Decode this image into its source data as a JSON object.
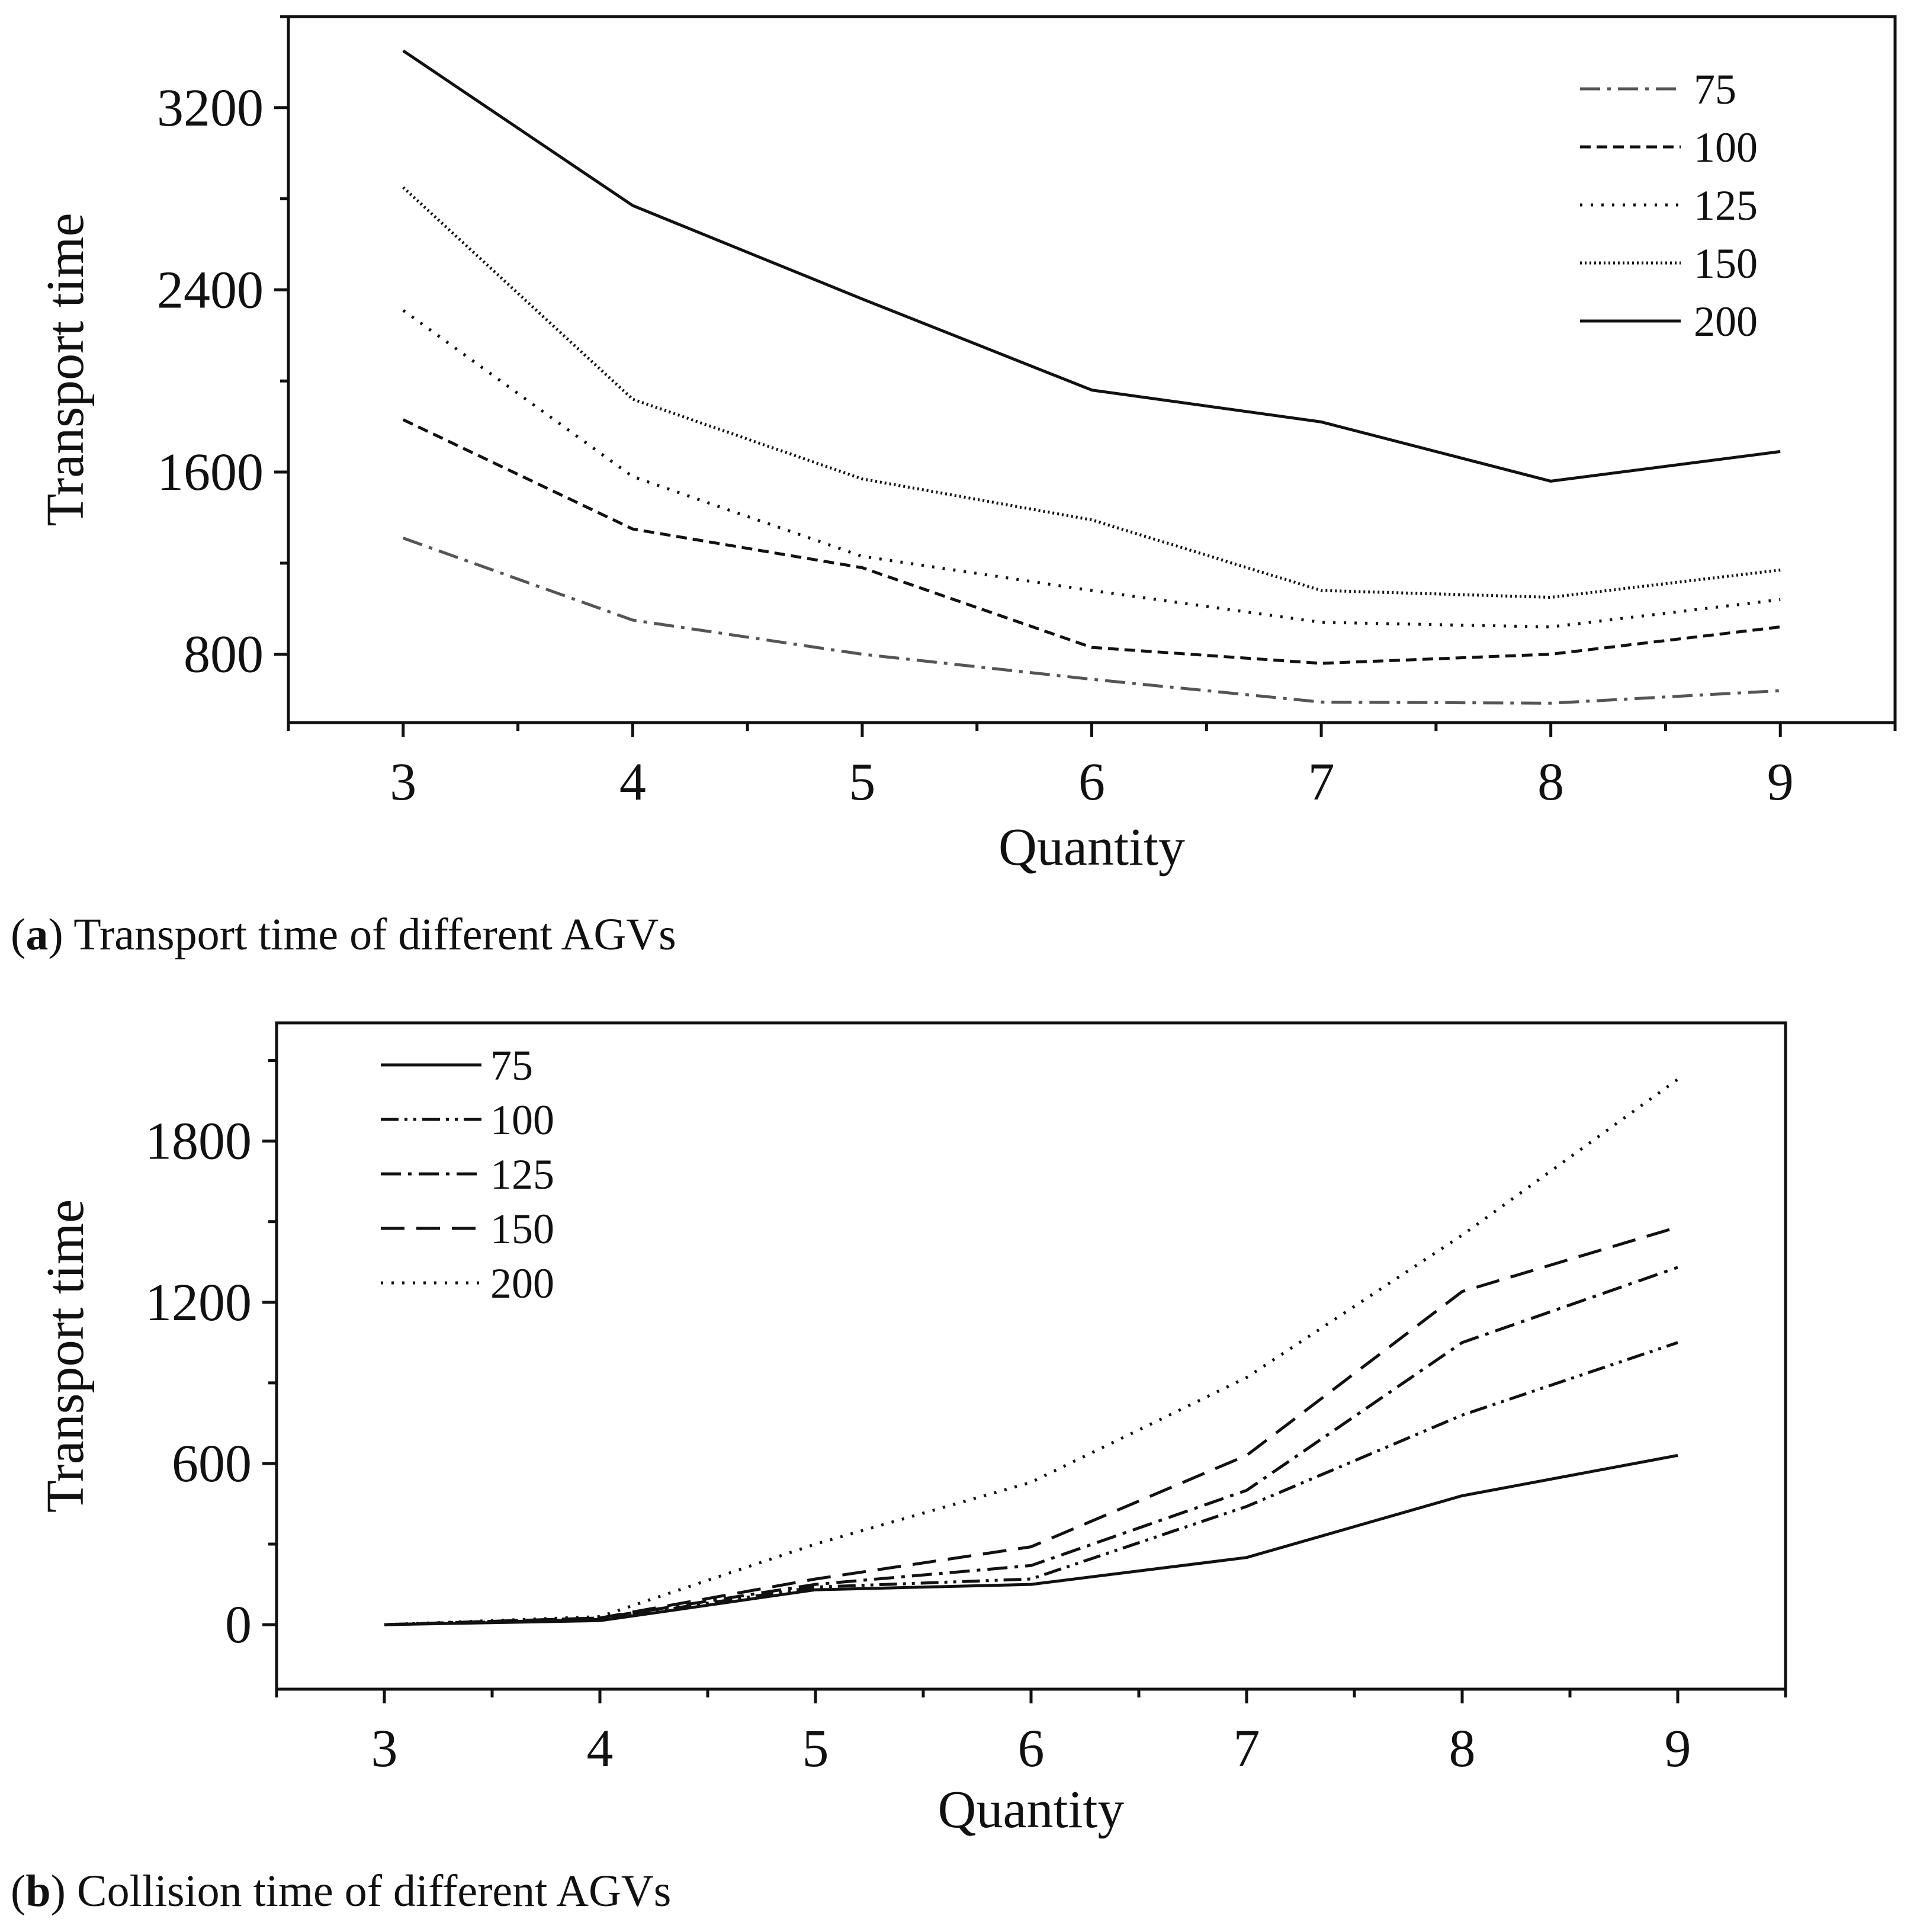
{
  "chart_data": [
    {
      "type": "line",
      "panel": "a",
      "xlabel": "Quantity",
      "ylabel": "Transport time",
      "x": [
        3,
        4,
        5,
        6,
        7,
        8,
        9
      ],
      "xlim": [
        2.5,
        9.5
      ],
      "ylim": [
        500,
        3600
      ],
      "yticks": [
        800,
        1600,
        2400,
        3200
      ],
      "legend_position": "top-right",
      "series": [
        {
          "name": "75",
          "style": "dashdot",
          "color": "#555555",
          "values": [
            1310,
            950,
            800,
            690,
            590,
            585,
            640
          ]
        },
        {
          "name": "100",
          "style": "dashed",
          "color": "#111111",
          "values": [
            1830,
            1350,
            1180,
            830,
            760,
            800,
            920
          ]
        },
        {
          "name": "125",
          "style": "dotted",
          "color": "#111111",
          "values": [
            2310,
            1580,
            1230,
            1080,
            940,
            920,
            1040
          ]
        },
        {
          "name": "150",
          "style": "densedot",
          "color": "#111111",
          "values": [
            2850,
            1920,
            1570,
            1390,
            1080,
            1050,
            1170
          ]
        },
        {
          "name": "200",
          "style": "solid",
          "color": "#111111",
          "values": [
            3450,
            2770,
            2360,
            1960,
            1820,
            1560,
            1690
          ]
        }
      ],
      "caption": {
        "label": "a",
        "text": "Transport time of different AGVs"
      }
    },
    {
      "type": "line",
      "panel": "b",
      "xlabel": "Quantity",
      "ylabel": "Transport time",
      "x": [
        3,
        4,
        5,
        6,
        7,
        8,
        9
      ],
      "xlim": [
        2.5,
        9.5
      ],
      "ylim": [
        -240,
        2240
      ],
      "yticks": [
        0,
        600,
        1200,
        1800
      ],
      "legend_position": "top-left",
      "series": [
        {
          "name": "75",
          "style": "solid",
          "color": "#111111",
          "values": [
            0,
            15,
            130,
            150,
            250,
            480,
            630
          ]
        },
        {
          "name": "100",
          "style": "dashdotdot",
          "color": "#111111",
          "values": [
            0,
            20,
            140,
            170,
            440,
            780,
            1050
          ]
        },
        {
          "name": "125",
          "style": "dashdot",
          "color": "#111111",
          "values": [
            0,
            25,
            150,
            220,
            500,
            1050,
            1330
          ]
        },
        {
          "name": "150",
          "style": "longdash",
          "color": "#111111",
          "values": [
            0,
            25,
            170,
            290,
            630,
            1240,
            1480
          ]
        },
        {
          "name": "200",
          "style": "dotted",
          "color": "#111111",
          "values": [
            0,
            30,
            300,
            530,
            920,
            1450,
            2030
          ]
        }
      ],
      "caption": {
        "label": "b",
        "text": "Collision time of different AGVs"
      }
    }
  ]
}
